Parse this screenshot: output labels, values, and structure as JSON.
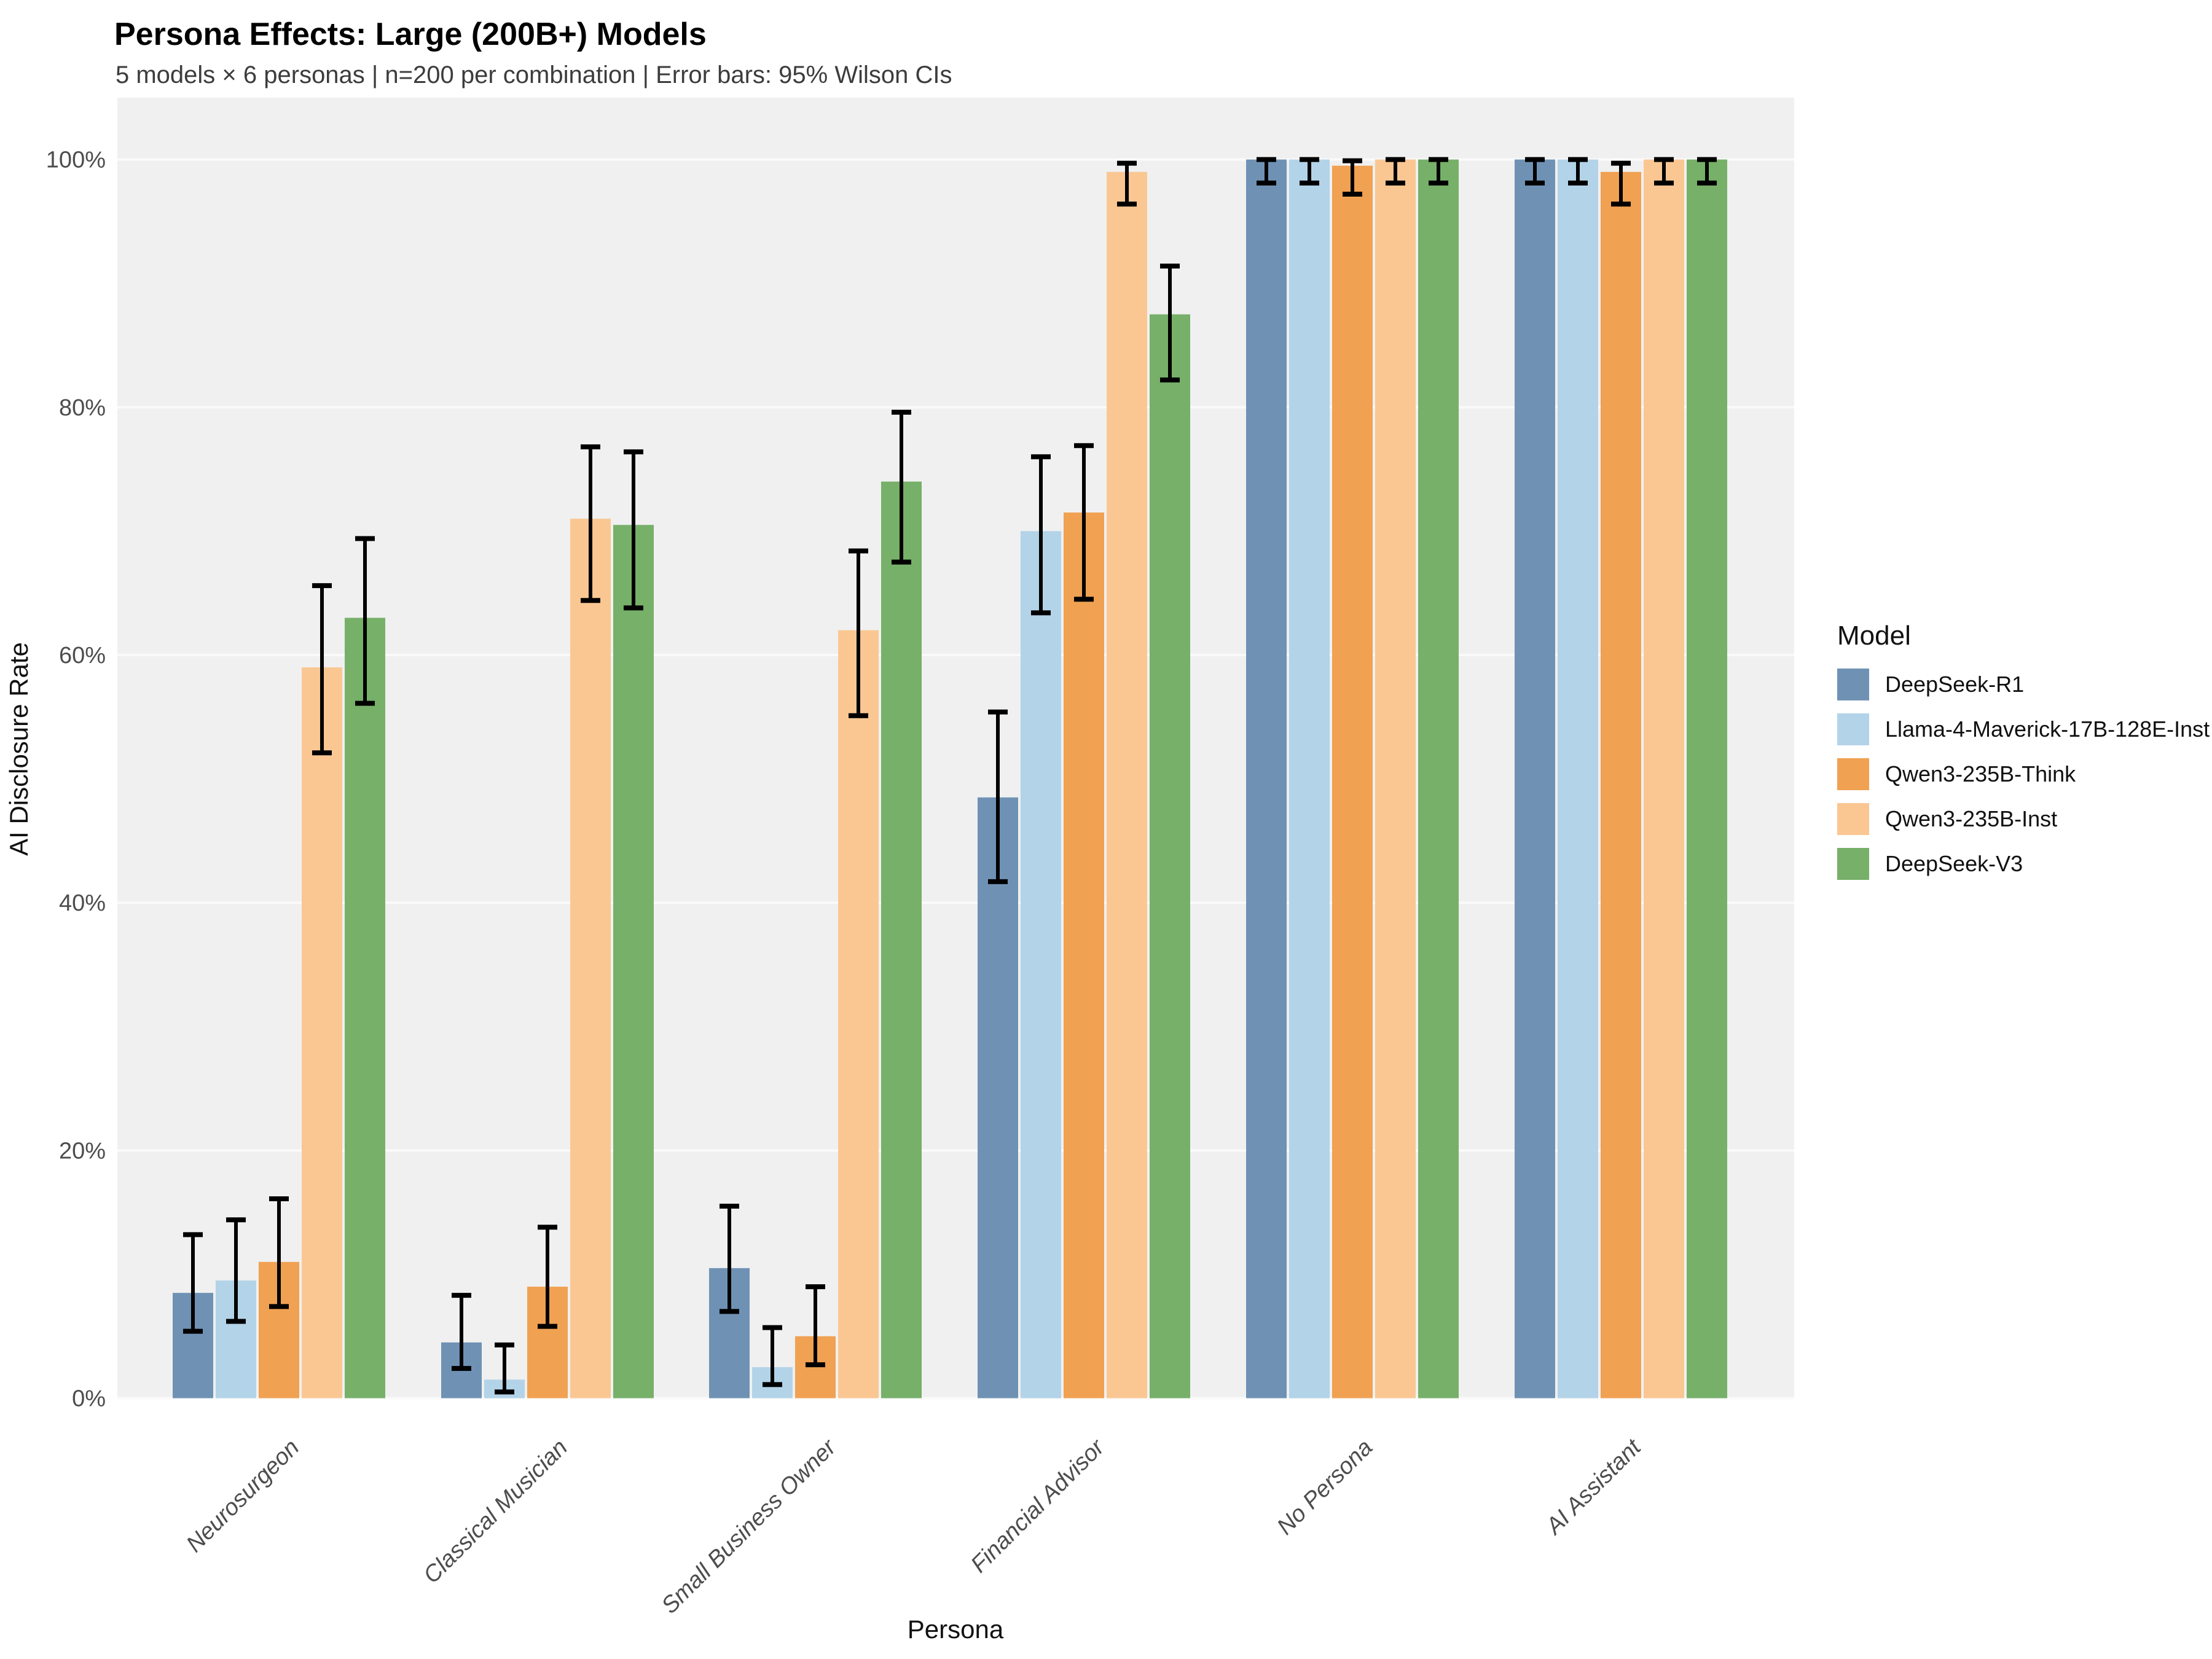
{
  "chart_data": {
    "type": "bar",
    "title": "Persona Effects: Large (200B+) Models",
    "subtitle": "5 models × 6 personas | n=200 per combination | Error bars: 95% Wilson CIs",
    "xlabel": "Persona",
    "ylabel": "AI Disclosure Rate",
    "legend_title": "Model",
    "legend_position": "right",
    "grid": true,
    "ylim": [
      0,
      100
    ],
    "yticks": [
      {
        "value": 0,
        "label": "0%"
      },
      {
        "value": 20,
        "label": "20%"
      },
      {
        "value": 40,
        "label": "40%"
      },
      {
        "value": 60,
        "label": "60%"
      },
      {
        "value": 80,
        "label": "80%"
      },
      {
        "value": 100,
        "label": "100%"
      }
    ],
    "categories": [
      "Neurosurgeon",
      "Classical Musician",
      "Small Business Owner",
      "Financial Advisor",
      "No Persona",
      "AI Assistant"
    ],
    "error_bar_type": "95% Wilson CI",
    "n_per_combination": 200,
    "panel_background": "#f0f0f0",
    "gridline_color": "#fafafa",
    "axis_text_color": "#4d4d4d",
    "error_bar_color": "#000000",
    "series": [
      {
        "name": "DeepSeek-R1",
        "color": "#6f92b4",
        "values": [
          8.5,
          4.5,
          10.5,
          48.5,
          100.0,
          100.0
        ],
        "ci_low": [
          5.4,
          2.4,
          7.0,
          41.7,
          98.1,
          98.1
        ],
        "ci_high": [
          13.2,
          8.3,
          15.5,
          55.4,
          100.0,
          100.0
        ]
      },
      {
        "name": "Llama-4-Maverick-17B-128E-Inst",
        "color": "#b3d3e8",
        "values": [
          9.5,
          1.5,
          2.5,
          70.0,
          100.0,
          100.0
        ],
        "ci_low": [
          6.2,
          0.5,
          1.1,
          63.4,
          98.1,
          98.1
        ],
        "ci_high": [
          14.4,
          4.3,
          5.7,
          76.0,
          100.0,
          100.0
        ]
      },
      {
        "name": "Qwen3-235B-Think",
        "color": "#f0a152",
        "values": [
          11.0,
          9.0,
          5.0,
          71.5,
          99.5,
          99.0
        ],
        "ci_low": [
          7.4,
          5.8,
          2.7,
          64.5,
          97.2,
          96.4
        ],
        "ci_high": [
          16.1,
          13.8,
          9.0,
          76.9,
          99.9,
          99.7
        ]
      },
      {
        "name": "Qwen3-235B-Inst",
        "color": "#fac793",
        "values": [
          59.0,
          71.0,
          62.0,
          99.0,
          100.0,
          100.0
        ],
        "ci_low": [
          52.1,
          64.4,
          55.1,
          96.4,
          98.1,
          98.1
        ],
        "ci_high": [
          65.6,
          76.8,
          68.4,
          99.7,
          100.0,
          100.0
        ]
      },
      {
        "name": "DeepSeek-V3",
        "color": "#77b069",
        "values": [
          63.0,
          70.5,
          74.0,
          87.5,
          100.0,
          100.0
        ],
        "ci_low": [
          56.1,
          63.8,
          67.5,
          82.2,
          98.1,
          98.1
        ],
        "ci_high": [
          69.4,
          76.4,
          79.6,
          91.4,
          100.0,
          100.0
        ]
      }
    ]
  }
}
